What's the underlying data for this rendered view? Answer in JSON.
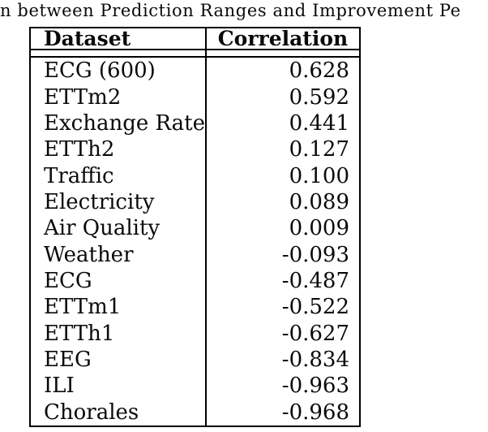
{
  "caption": {
    "visible_text": "n between Prediction Ranges and Improvement Pe"
  },
  "table": {
    "columns": [
      "Dataset",
      "Correlation"
    ],
    "rows": [
      [
        "ECG (600)",
        "0.628"
      ],
      [
        "ETTm2",
        "0.592"
      ],
      [
        "Exchange Rate",
        "0.441"
      ],
      [
        "ETTh2",
        "0.127"
      ],
      [
        "Traffic",
        "0.100"
      ],
      [
        "Electricity",
        "0.089"
      ],
      [
        "Air Quality",
        "0.009"
      ],
      [
        "Weather",
        "-0.093"
      ],
      [
        "ECG",
        "-0.487"
      ],
      [
        "ETTm1",
        "-0.522"
      ],
      [
        "ETTh1",
        "-0.627"
      ],
      [
        "EEG",
        "-0.834"
      ],
      [
        "ILI",
        "-0.963"
      ],
      [
        "Chorales",
        "-0.968"
      ]
    ]
  },
  "colors": {
    "border": "#000000",
    "text": "#0a0a0a",
    "background": "#ffffff"
  }
}
